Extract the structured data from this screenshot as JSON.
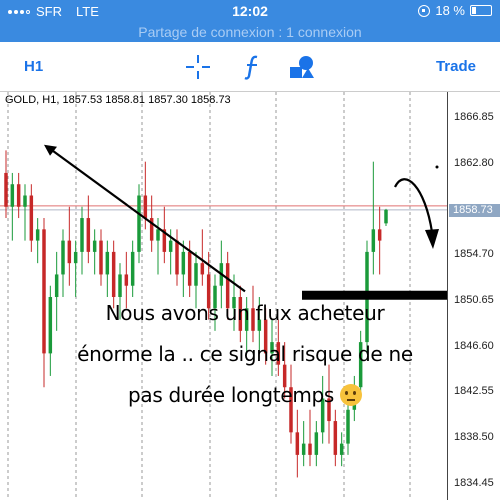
{
  "status_bar": {
    "carrier": "SFR",
    "network": "LTE",
    "time": "12:02",
    "battery": "18 %"
  },
  "hotspot_banner": "Partage de connexion : 1 connexion",
  "toolbar": {
    "timeframe": "H1",
    "crosshair_icon": "crosshair-icon",
    "indicator_icon": "function-f-icon",
    "objects_icon": "shapes-icon",
    "trade_label": "Trade"
  },
  "chart": {
    "title": "GOLD, H1, 1857.53 1858.81 1857.30 1858.73",
    "last_price": "1858.73",
    "price_ticks": [
      "1866.85",
      "1862.80",
      "1858.75",
      "1854.70",
      "1850.65",
      "1846.60",
      "1842.55",
      "1838.50",
      "1834.45"
    ],
    "colors": {
      "bull": "#1a9a3a",
      "bear": "#c62828",
      "axis": "#444444",
      "grid": "#999999"
    }
  },
  "chart_data": {
    "type": "candlestick",
    "symbol": "GOLD",
    "timeframe": "H1",
    "last": {
      "open": 1857.53,
      "high": 1858.81,
      "low": 1857.3,
      "close": 1858.73
    },
    "ylim": [
      1833.0,
      1869.0
    ],
    "yticks": [
      1866.85,
      1862.8,
      1858.75,
      1854.7,
      1850.65,
      1846.6,
      1842.55,
      1838.5,
      1834.45
    ],
    "candles": [
      [
        1862,
        1864,
        1858,
        1859
      ],
      [
        1859,
        1862,
        1856,
        1861
      ],
      [
        1861,
        1862,
        1858,
        1859
      ],
      [
        1859,
        1861,
        1856,
        1860
      ],
      [
        1860,
        1861,
        1855,
        1856
      ],
      [
        1856,
        1858,
        1854,
        1857
      ],
      [
        1857,
        1858,
        1843,
        1846
      ],
      [
        1846,
        1852,
        1844,
        1851
      ],
      [
        1851,
        1855,
        1848,
        1853
      ],
      [
        1853,
        1857,
        1851,
        1856
      ],
      [
        1856,
        1859,
        1852,
        1854
      ],
      [
        1854,
        1856,
        1851,
        1855
      ],
      [
        1855,
        1859,
        1853,
        1858
      ],
      [
        1858,
        1860,
        1854,
        1855
      ],
      [
        1855,
        1857,
        1853,
        1856
      ],
      [
        1856,
        1857,
        1852,
        1853
      ],
      [
        1853,
        1856,
        1851,
        1855
      ],
      [
        1855,
        1856,
        1850,
        1851
      ],
      [
        1851,
        1854,
        1849,
        1853
      ],
      [
        1853,
        1855,
        1850,
        1852
      ],
      [
        1852,
        1856,
        1851,
        1855
      ],
      [
        1855,
        1861,
        1854,
        1860
      ],
      [
        1860,
        1863,
        1857,
        1858
      ],
      [
        1858,
        1860,
        1855,
        1856
      ],
      [
        1856,
        1858,
        1853,
        1857
      ],
      [
        1857,
        1859,
        1854,
        1855
      ],
      [
        1855,
        1857,
        1853,
        1856
      ],
      [
        1856,
        1857,
        1852,
        1853
      ],
      [
        1853,
        1856,
        1851,
        1855
      ],
      [
        1855,
        1856,
        1851,
        1852
      ],
      [
        1852,
        1855,
        1850,
        1854
      ],
      [
        1854,
        1857,
        1852,
        1853
      ],
      [
        1853,
        1855,
        1849,
        1850
      ],
      [
        1850,
        1853,
        1848,
        1852
      ],
      [
        1852,
        1856,
        1850,
        1854
      ],
      [
        1854,
        1855,
        1849,
        1850
      ],
      [
        1850,
        1853,
        1848,
        1851
      ],
      [
        1851,
        1852,
        1847,
        1848
      ],
      [
        1848,
        1851,
        1846,
        1850
      ],
      [
        1850,
        1852,
        1847,
        1848
      ],
      [
        1848,
        1851,
        1846,
        1849
      ],
      [
        1849,
        1850,
        1845,
        1846
      ],
      [
        1846,
        1849,
        1844,
        1847
      ],
      [
        1847,
        1849,
        1844,
        1845
      ],
      [
        1845,
        1847,
        1842,
        1843
      ],
      [
        1843,
        1845,
        1838,
        1839
      ],
      [
        1839,
        1841,
        1835,
        1837
      ],
      [
        1837,
        1840,
        1836,
        1838
      ],
      [
        1838,
        1841,
        1836,
        1837
      ],
      [
        1837,
        1840,
        1836,
        1839
      ],
      [
        1839,
        1844,
        1838,
        1842
      ],
      [
        1842,
        1845,
        1838,
        1840
      ],
      [
        1840,
        1841,
        1836,
        1837
      ],
      [
        1837,
        1839,
        1836,
        1838
      ],
      [
        1838,
        1842,
        1837,
        1841
      ],
      [
        1841,
        1844,
        1840,
        1843
      ],
      [
        1843,
        1848,
        1842,
        1847
      ],
      [
        1847,
        1856,
        1846,
        1855
      ],
      [
        1855,
        1863,
        1853,
        1857
      ],
      [
        1857,
        1859,
        1853,
        1856
      ],
      [
        1857.53,
        1858.81,
        1857.3,
        1858.73
      ]
    ],
    "annotations": {
      "text": [
        "Nous avons un flux acheteur",
        "énorme la .. ce signal risque de ne",
        "pas durée longtemps"
      ],
      "trend_arrow": {
        "from_price": 1864.5,
        "to_price": 1851.5
      },
      "support_level": 1851.2
    }
  }
}
